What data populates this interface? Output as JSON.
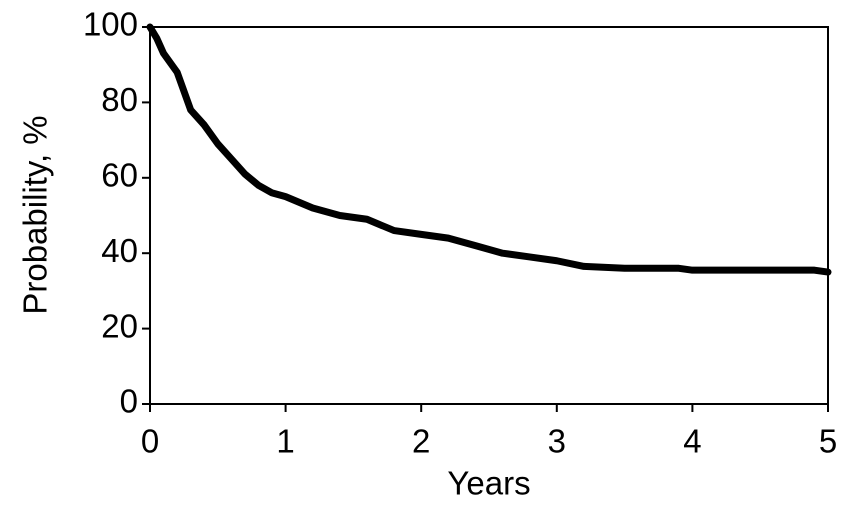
{
  "chart_data": {
    "type": "line",
    "x_label": "Years",
    "y_label": "Probability, %",
    "x": [
      0,
      0.05,
      0.1,
      0.2,
      0.25,
      0.3,
      0.4,
      0.5,
      0.6,
      0.7,
      0.8,
      0.9,
      1.0,
      1.2,
      1.4,
      1.6,
      1.8,
      2.0,
      2.2,
      2.4,
      2.6,
      2.8,
      3.0,
      3.2,
      3.5,
      3.9,
      4.0,
      4.5,
      4.9,
      5.0
    ],
    "series": [
      {
        "color": "#000000",
        "values": [
          100,
          97,
          93,
          88,
          83,
          78,
          74,
          69,
          65,
          61,
          58,
          56,
          55,
          52,
          50,
          49,
          46,
          45,
          44,
          42,
          40,
          39,
          38,
          36.5,
          36,
          36,
          35.5,
          35.5,
          35.5,
          35
        ]
      }
    ],
    "xlim": [
      0,
      5
    ],
    "xticks": [
      0,
      1,
      2,
      3,
      4,
      5
    ],
    "ylim": [
      0,
      100
    ],
    "yticks": [
      0,
      20,
      40,
      60,
      80,
      100
    ]
  }
}
